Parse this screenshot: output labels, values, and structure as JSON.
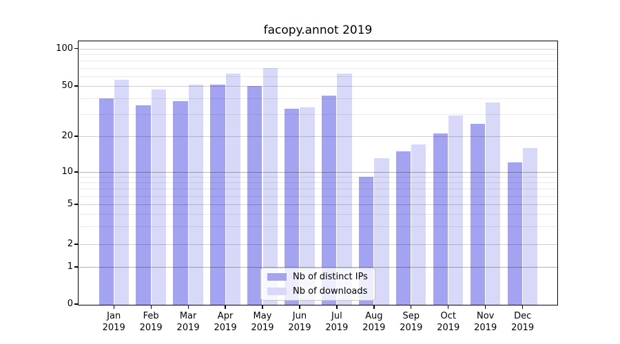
{
  "chart_data": {
    "type": "bar",
    "title": "facopy.annot 2019",
    "categories": [
      "Jan 2019",
      "Feb 2019",
      "Mar 2019",
      "Apr 2019",
      "May 2019",
      "Jun 2019",
      "Jul 2019",
      "Aug 2019",
      "Sep 2019",
      "Oct 2019",
      "Nov 2019",
      "Dec 2019"
    ],
    "series": [
      {
        "name": "Nb of distinct IPs",
        "color": "#a3a3f2",
        "values": [
          40,
          35,
          38,
          51,
          50,
          33,
          42,
          9,
          15,
          21,
          25,
          12
        ]
      },
      {
        "name": "Nb of downloads",
        "color": "#d8d8f8",
        "values": [
          56,
          47,
          51,
          63,
          70,
          34,
          63,
          13,
          17,
          29,
          37,
          16
        ]
      }
    ],
    "yscale": "symlog",
    "yticks": [
      0,
      1,
      2,
      5,
      10,
      20,
      50,
      100
    ],
    "minor_yticks": [
      3,
      4,
      6,
      7,
      8,
      9,
      30,
      40,
      60,
      70,
      80,
      90
    ],
    "ylim": [
      0,
      115
    ],
    "xlabel": "",
    "ylabel": "",
    "grid": "both, drawn over bars",
    "legend_position": "lower center"
  },
  "legend": {
    "items": [
      {
        "label": "Nb of distinct IPs",
        "color": "#a3a3f2"
      },
      {
        "label": "Nb of downloads",
        "color": "#d8d8f8"
      }
    ]
  }
}
